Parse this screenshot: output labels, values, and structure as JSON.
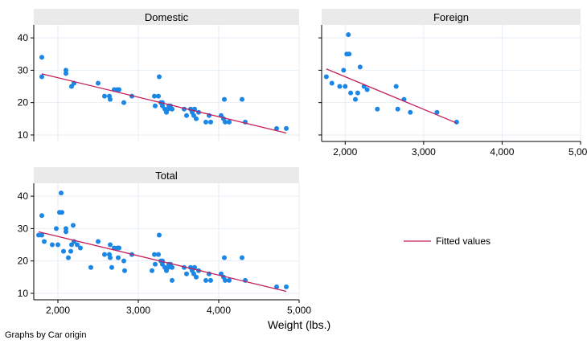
{
  "chart_data": {
    "type": "scatter",
    "by_variable_note": "Graphs by Car origin",
    "xlabel": "Weight (lbs.)",
    "ylabel": "",
    "xlim": [
      1700,
      5000
    ],
    "ylim": [
      8,
      44
    ],
    "x_ticks": [
      2000,
      3000,
      4000,
      5000
    ],
    "x_tick_labels": [
      "2,000",
      "3,000",
      "4,000",
      "5,000"
    ],
    "y_ticks": [
      10,
      20,
      30,
      40
    ],
    "y_tick_labels": [
      "10",
      "20",
      "30",
      "40"
    ],
    "grid": true,
    "legend": {
      "position": "right",
      "entries": [
        "Fitted values"
      ]
    },
    "colors": {
      "points": "#1a86e6",
      "fit": "#c41e5b",
      "panel_header": "#eaeaea",
      "grid": "#e6eef5"
    },
    "panels": [
      {
        "title": "Domestic",
        "points": [
          [
            1800,
            34
          ],
          [
            1800,
            28
          ],
          [
            2100,
            30
          ],
          [
            2100,
            29
          ],
          [
            2170,
            25
          ],
          [
            2200,
            26
          ],
          [
            2500,
            26
          ],
          [
            2580,
            22
          ],
          [
            2640,
            22
          ],
          [
            2650,
            21
          ],
          [
            2700,
            24
          ],
          [
            2740,
            24
          ],
          [
            2760,
            24
          ],
          [
            2820,
            20
          ],
          [
            2920,
            22
          ],
          [
            3200,
            22
          ],
          [
            3210,
            19
          ],
          [
            3250,
            22
          ],
          [
            3260,
            28
          ],
          [
            3280,
            20
          ],
          [
            3300,
            20
          ],
          [
            3300,
            19
          ],
          [
            3330,
            18
          ],
          [
            3350,
            17
          ],
          [
            3370,
            18
          ],
          [
            3380,
            19
          ],
          [
            3400,
            19
          ],
          [
            3420,
            18
          ],
          [
            3570,
            18
          ],
          [
            3600,
            16
          ],
          [
            3650,
            18
          ],
          [
            3670,
            17
          ],
          [
            3690,
            16
          ],
          [
            3700,
            18
          ],
          [
            3720,
            15
          ],
          [
            3750,
            17
          ],
          [
            3840,
            14
          ],
          [
            3880,
            16
          ],
          [
            3900,
            14
          ],
          [
            4030,
            16
          ],
          [
            4060,
            15
          ],
          [
            4070,
            21
          ],
          [
            4080,
            14
          ],
          [
            4130,
            14
          ],
          [
            4290,
            21
          ],
          [
            4330,
            14
          ],
          [
            4720,
            12
          ],
          [
            4840,
            12
          ]
        ],
        "fit": {
          "x": [
            1800,
            4840
          ],
          "y": [
            28.9,
            10.6
          ]
        }
      },
      {
        "title": "Foreign",
        "points": [
          [
            1760,
            28
          ],
          [
            1830,
            26
          ],
          [
            1930,
            25
          ],
          [
            1980,
            30
          ],
          [
            2000,
            25
          ],
          [
            2020,
            35
          ],
          [
            2040,
            41
          ],
          [
            2050,
            35
          ],
          [
            2070,
            23
          ],
          [
            2130,
            21
          ],
          [
            2160,
            23
          ],
          [
            2190,
            31
          ],
          [
            2240,
            25
          ],
          [
            2280,
            24
          ],
          [
            2410,
            18
          ],
          [
            2650,
            25
          ],
          [
            2670,
            18
          ],
          [
            2750,
            21
          ],
          [
            2830,
            17
          ],
          [
            3170,
            17
          ],
          [
            3420,
            14
          ]
        ],
        "fit": {
          "x": [
            1760,
            3420
          ],
          "y": [
            30.4,
            13.7
          ]
        }
      },
      {
        "title": "Total",
        "points": [
          [
            1760,
            28
          ],
          [
            1800,
            34
          ],
          [
            1800,
            28
          ],
          [
            1830,
            26
          ],
          [
            1930,
            25
          ],
          [
            1980,
            30
          ],
          [
            2000,
            25
          ],
          [
            2020,
            35
          ],
          [
            2040,
            41
          ],
          [
            2050,
            35
          ],
          [
            2070,
            23
          ],
          [
            2100,
            30
          ],
          [
            2100,
            29
          ],
          [
            2130,
            21
          ],
          [
            2160,
            23
          ],
          [
            2170,
            25
          ],
          [
            2190,
            31
          ],
          [
            2200,
            26
          ],
          [
            2240,
            25
          ],
          [
            2280,
            24
          ],
          [
            2410,
            18
          ],
          [
            2500,
            26
          ],
          [
            2580,
            22
          ],
          [
            2640,
            22
          ],
          [
            2650,
            21
          ],
          [
            2650,
            25
          ],
          [
            2670,
            18
          ],
          [
            2700,
            24
          ],
          [
            2740,
            24
          ],
          [
            2750,
            21
          ],
          [
            2760,
            24
          ],
          [
            2820,
            20
          ],
          [
            2830,
            17
          ],
          [
            2920,
            22
          ],
          [
            3170,
            17
          ],
          [
            3200,
            22
          ],
          [
            3210,
            19
          ],
          [
            3250,
            22
          ],
          [
            3260,
            28
          ],
          [
            3280,
            20
          ],
          [
            3300,
            20
          ],
          [
            3300,
            19
          ],
          [
            3330,
            18
          ],
          [
            3350,
            17
          ],
          [
            3370,
            18
          ],
          [
            3380,
            19
          ],
          [
            3400,
            19
          ],
          [
            3420,
            18
          ],
          [
            3420,
            14
          ],
          [
            3570,
            18
          ],
          [
            3600,
            16
          ],
          [
            3650,
            18
          ],
          [
            3670,
            17
          ],
          [
            3690,
            16
          ],
          [
            3700,
            18
          ],
          [
            3720,
            15
          ],
          [
            3750,
            17
          ],
          [
            3840,
            14
          ],
          [
            3880,
            16
          ],
          [
            3900,
            14
          ],
          [
            4030,
            16
          ],
          [
            4060,
            15
          ],
          [
            4070,
            21
          ],
          [
            4080,
            14
          ],
          [
            4130,
            14
          ],
          [
            4290,
            21
          ],
          [
            4330,
            14
          ],
          [
            4720,
            12
          ],
          [
            4840,
            12
          ]
        ],
        "fit": {
          "x": [
            1760,
            4840
          ],
          "y": [
            29.0,
            10.6
          ]
        }
      }
    ]
  }
}
